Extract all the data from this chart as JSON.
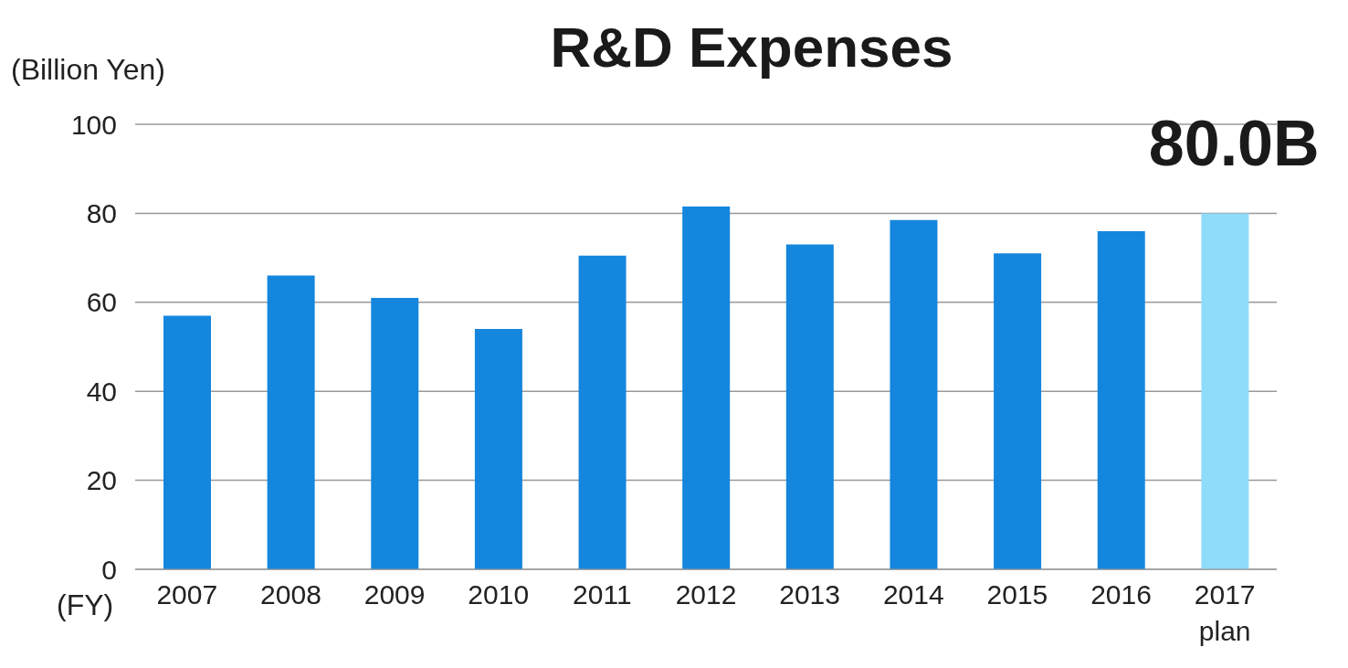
{
  "chart_data": {
    "type": "bar",
    "title": "R&D Expenses",
    "ylabel": "(Billion Yen)",
    "xlabel": "(FY)",
    "categories": [
      "2007",
      "2008",
      "2009",
      "2010",
      "2011",
      "2012",
      "2013",
      "2014",
      "2015",
      "2016",
      "2017 plan"
    ],
    "values": [
      57,
      66,
      61,
      54,
      70.5,
      81.5,
      73,
      78.5,
      71,
      76,
      80
    ],
    "colors": [
      "#1586dd",
      "#1586dd",
      "#1586dd",
      "#1586dd",
      "#1586dd",
      "#1586dd",
      "#1586dd",
      "#1586dd",
      "#1586dd",
      "#1586dd",
      "#8fdcfa"
    ],
    "ylim": [
      0,
      100
    ],
    "yticks": [
      0,
      20,
      40,
      60,
      80,
      100
    ],
    "grid": "y",
    "legend": false,
    "annotations": [
      {
        "text": "80.0B",
        "x": "2017 plan",
        "y": 80
      }
    ]
  }
}
